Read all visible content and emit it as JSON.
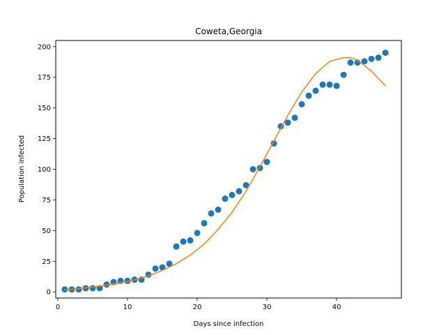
{
  "chart_data": {
    "type": "scatter",
    "title": "Coweta,Georgia",
    "xlabel": "Days since infection",
    "ylabel": "Population infected",
    "xlim": [
      -0.3,
      49.3
    ],
    "ylim": [
      -5,
      205
    ],
    "xticks": [
      0,
      10,
      20,
      30,
      40
    ],
    "yticks": [
      0,
      25,
      50,
      75,
      100,
      125,
      150,
      175,
      200
    ],
    "grid": false,
    "series": [
      {
        "kind": "scatter",
        "color": "#1f77b4",
        "x": [
          1,
          2,
          3,
          4,
          5,
          6,
          7,
          8,
          9,
          10,
          11,
          12,
          13,
          14,
          15,
          16,
          17,
          18,
          19,
          20,
          21,
          22,
          23,
          24,
          25,
          26,
          27,
          28,
          29,
          30,
          31,
          32,
          33,
          34,
          35,
          36,
          37,
          38,
          39,
          40,
          41,
          42,
          43,
          44,
          45,
          46,
          47
        ],
        "y": [
          2,
          2,
          2,
          3,
          3,
          3,
          6,
          8,
          9,
          9,
          10,
          10,
          14,
          19,
          20,
          23,
          37,
          41,
          42,
          48,
          56,
          64,
          67,
          76,
          79,
          82,
          87,
          100,
          101,
          106,
          121,
          135,
          138,
          142,
          153,
          160,
          164,
          169,
          169,
          168,
          177,
          187,
          187,
          188,
          190,
          191,
          195
        ]
      },
      {
        "kind": "line",
        "color": "#ff7f0e",
        "x": [
          1,
          3,
          5,
          7,
          9,
          11,
          13,
          15,
          17,
          19,
          21,
          23,
          25,
          27,
          29,
          31,
          33,
          35,
          37,
          39,
          41,
          42,
          43,
          45,
          47
        ],
        "y": [
          1.5,
          2.6,
          4,
          5.5,
          7.3,
          9.8,
          13,
          17.5,
          23,
          30,
          39,
          51,
          65,
          82,
          102,
          123,
          144,
          163,
          178,
          188,
          191,
          191,
          189,
          180,
          168
        ]
      }
    ]
  }
}
